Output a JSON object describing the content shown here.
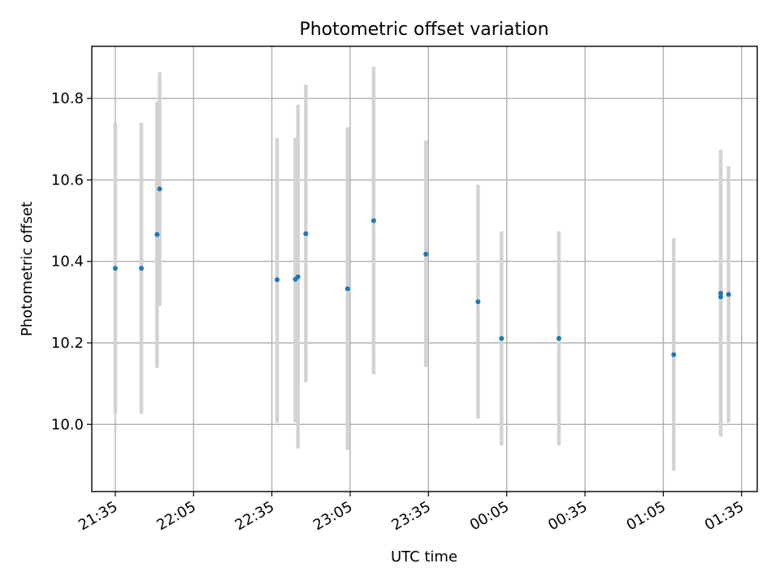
{
  "chart_data": {
    "type": "scatter",
    "title": "Photometric offset variation",
    "xlabel": "UTC time",
    "ylabel": "Photometric offset",
    "xaxis_kind": "time (HH:MM, UTC)",
    "xlim": [
      "21:26",
      "01:41"
    ],
    "ylim": [
      9.835,
      10.928
    ],
    "x_tick_labels": [
      "21:35",
      "22:05",
      "22:35",
      "23:05",
      "23:35",
      "00:05",
      "00:35",
      "01:05",
      "01:35"
    ],
    "y_ticks": [
      10.0,
      10.2,
      10.4,
      10.6,
      10.8
    ],
    "y_tick_labels": [
      "10.0",
      "10.2",
      "10.4",
      "10.6",
      "10.8"
    ],
    "grid": true,
    "marker_color": "#1f77b4",
    "errorbar_color": "#d3d3d3",
    "points": [
      {
        "x": "21:35",
        "y": 10.383,
        "ylow": 10.026,
        "yhigh": 10.74
      },
      {
        "x": "21:45",
        "y": 10.383,
        "ylow": 10.026,
        "yhigh": 10.74
      },
      {
        "x": "21:51",
        "y": 10.466,
        "ylow": 10.139,
        "yhigh": 10.792
      },
      {
        "x": "21:52",
        "y": 10.578,
        "ylow": 10.291,
        "yhigh": 10.864
      },
      {
        "x": "22:37",
        "y": 10.355,
        "ylow": 10.004,
        "yhigh": 10.703
      },
      {
        "x": "22:44",
        "y": 10.356,
        "ylow": 10.005,
        "yhigh": 10.703
      },
      {
        "x": "22:45",
        "y": 10.362,
        "ylow": 9.941,
        "yhigh": 10.785
      },
      {
        "x": "22:48",
        "y": 10.468,
        "ylow": 10.104,
        "yhigh": 10.834
      },
      {
        "x": "23:04",
        "y": 10.333,
        "ylow": 9.937,
        "yhigh": 10.729
      },
      {
        "x": "23:14",
        "y": 10.5,
        "ylow": 10.123,
        "yhigh": 10.878
      },
      {
        "x": "23:34",
        "y": 10.418,
        "ylow": 10.141,
        "yhigh": 10.697
      },
      {
        "x": "23:54",
        "y": 10.301,
        "ylow": 10.014,
        "yhigh": 10.588
      },
      {
        "x": "00:03",
        "y": 10.211,
        "ylow": 9.948,
        "yhigh": 10.474
      },
      {
        "x": "00:25",
        "y": 10.211,
        "ylow": 9.948,
        "yhigh": 10.474
      },
      {
        "x": "01:09",
        "y": 10.171,
        "ylow": 9.886,
        "yhigh": 10.457
      },
      {
        "x": "01:27",
        "y": 10.313,
        "ylow": 9.972,
        "yhigh": 10.653
      },
      {
        "x": "01:27",
        "y": 10.322,
        "ylow": 9.97,
        "yhigh": 10.674
      },
      {
        "x": "01:30",
        "y": 10.319,
        "ylow": 10.004,
        "yhigh": 10.634
      }
    ]
  }
}
